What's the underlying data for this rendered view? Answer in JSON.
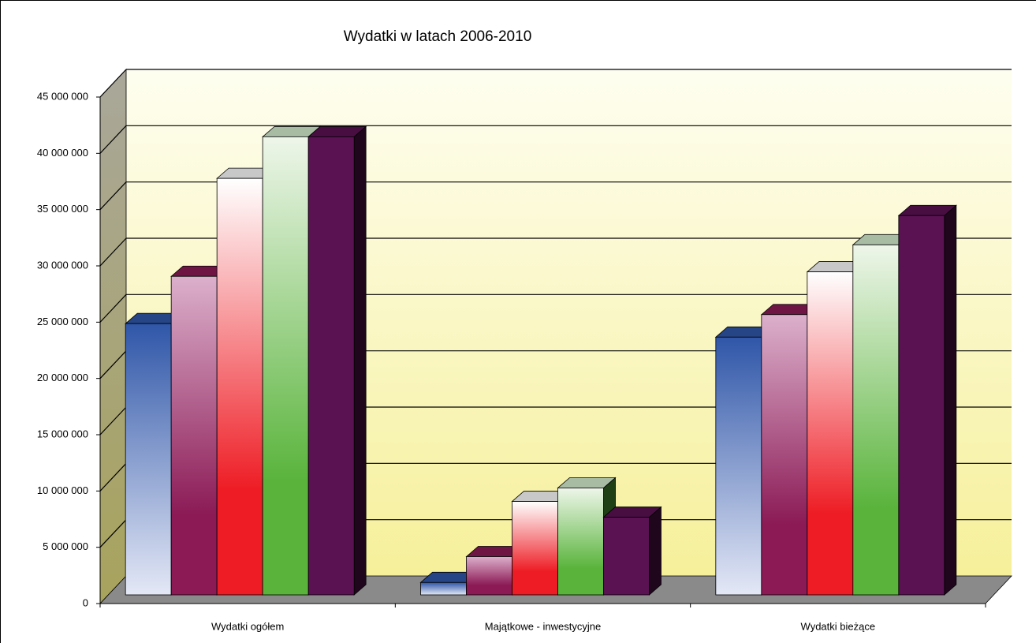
{
  "chart_data": {
    "type": "bar3d",
    "title": "Wydatki w latach 2006-2010",
    "categories": [
      "Wydatki ogółem",
      "Majątkowe - inwestycyjne",
      "Wydatki bieżące"
    ],
    "series": [
      {
        "color": "#2f56a8",
        "values": [
          24100000,
          1100000,
          22900000
        ]
      },
      {
        "color": "#8b1a55",
        "values": [
          28300000,
          3400000,
          24900000
        ]
      },
      {
        "color": "#ee1c24",
        "values": [
          37000000,
          8300000,
          28700000
        ]
      },
      {
        "color": "#5ab43c",
        "values": [
          40700000,
          9500000,
          31100000
        ]
      },
      {
        "color": "#5a1252",
        "values": [
          40700000,
          6900000,
          33700000
        ]
      }
    ],
    "ylim": [
      0,
      45000000
    ],
    "yticks": [
      0,
      {
        "value": 5000000,
        "label": "5 000 000"
      },
      {
        "value": 10000000,
        "label": "10 000 000"
      },
      {
        "value": 15000000,
        "label": "15 000 000"
      },
      {
        "value": 20000000,
        "label": "20 000 000"
      },
      {
        "value": 25000000,
        "label": "25 000 000"
      },
      {
        "value": 30000000,
        "label": "30 000 000"
      },
      {
        "value": 35000000,
        "label": "35 000 000"
      },
      {
        "value": 40000000,
        "label": "40 000 000"
      },
      {
        "value": 45000000,
        "label": "45 000 000"
      }
    ],
    "grid": true
  }
}
